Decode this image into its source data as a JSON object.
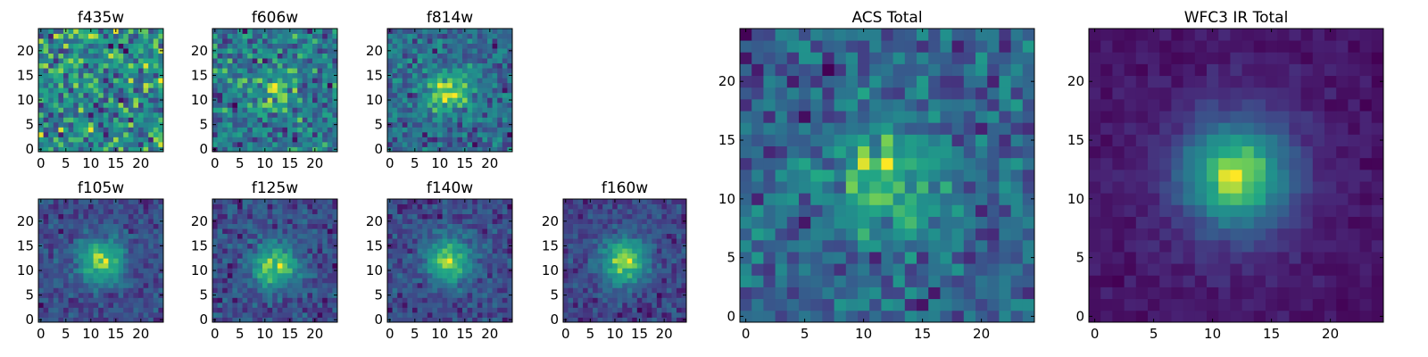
{
  "chart_data": [
    {
      "type": "heatmap",
      "title": "f435w",
      "xticks": [
        0,
        5,
        10,
        15,
        20
      ],
      "yticks": [
        0,
        5,
        10,
        15,
        20
      ],
      "xlim": [
        0,
        24
      ],
      "ylim": [
        0,
        24
      ],
      "grid_size": 25,
      "colormap": "viridis",
      "peak_center": null,
      "peak_strength": 0.0,
      "noise": 1.0,
      "seed": 11
    },
    {
      "type": "heatmap",
      "title": "f606w",
      "xticks": [
        0,
        5,
        10,
        15,
        20
      ],
      "yticks": [
        0,
        5,
        10,
        15,
        20
      ],
      "xlim": [
        0,
        24
      ],
      "ylim": [
        0,
        24
      ],
      "grid_size": 25,
      "colormap": "viridis",
      "peak_center": [
        12,
        12
      ],
      "peak_strength": 0.2,
      "noise": 0.9,
      "seed": 23
    },
    {
      "type": "heatmap",
      "title": "f814w",
      "xticks": [
        0,
        5,
        10,
        15,
        20
      ],
      "yticks": [
        0,
        5,
        10,
        15,
        20
      ],
      "xlim": [
        0,
        24
      ],
      "ylim": [
        0,
        24
      ],
      "grid_size": 25,
      "colormap": "viridis",
      "peak_center": [
        12,
        12
      ],
      "peak_strength": 0.45,
      "noise": 0.8,
      "seed": 37
    },
    {
      "type": "heatmap",
      "title": "f105w",
      "xticks": [
        0,
        5,
        10,
        15,
        20
      ],
      "yticks": [
        0,
        5,
        10,
        15,
        20
      ],
      "xlim": [
        0,
        24
      ],
      "ylim": [
        0,
        24
      ],
      "grid_size": 25,
      "colormap": "viridis",
      "peak_center": [
        12,
        12
      ],
      "peak_strength": 0.7,
      "noise": 0.6,
      "seed": 41
    },
    {
      "type": "heatmap",
      "title": "f125w",
      "xticks": [
        0,
        5,
        10,
        15,
        20
      ],
      "yticks": [
        0,
        5,
        10,
        15,
        20
      ],
      "xlim": [
        0,
        24
      ],
      "ylim": [
        0,
        24
      ],
      "grid_size": 25,
      "colormap": "viridis",
      "peak_center": [
        12,
        11
      ],
      "peak_strength": 0.6,
      "noise": 0.6,
      "seed": 53
    },
    {
      "type": "heatmap",
      "title": "f140w",
      "xticks": [
        0,
        5,
        10,
        15,
        20
      ],
      "yticks": [
        0,
        5,
        10,
        15,
        20
      ],
      "xlim": [
        0,
        24
      ],
      "ylim": [
        0,
        24
      ],
      "grid_size": 25,
      "colormap": "viridis",
      "peak_center": [
        12,
        12
      ],
      "peak_strength": 0.7,
      "noise": 0.6,
      "seed": 67
    },
    {
      "type": "heatmap",
      "title": "f160w",
      "xticks": [
        0,
        5,
        10,
        15,
        20
      ],
      "yticks": [
        0,
        5,
        10,
        15,
        20
      ],
      "xlim": [
        0,
        24
      ],
      "ylim": [
        0,
        24
      ],
      "grid_size": 25,
      "colormap": "viridis",
      "peak_center": [
        12,
        12
      ],
      "peak_strength": 0.75,
      "noise": 0.55,
      "seed": 79
    },
    {
      "type": "heatmap",
      "title": "ACS Total",
      "xticks": [
        0,
        5,
        10,
        15,
        20
      ],
      "yticks": [
        0,
        5,
        10,
        15,
        20
      ],
      "xlim": [
        0,
        24
      ],
      "ylim": [
        0,
        24
      ],
      "grid_size": 25,
      "colormap": "viridis",
      "peak_center": [
        12,
        12
      ],
      "peak_strength": 0.35,
      "noise": 0.75,
      "seed": 83
    },
    {
      "type": "heatmap",
      "title": "WFC3 IR Total",
      "xticks": [
        0,
        5,
        10,
        15,
        20
      ],
      "yticks": [
        0,
        5,
        10,
        15,
        20
      ],
      "xlim": [
        0,
        24
      ],
      "ylim": [
        0,
        24
      ],
      "grid_size": 25,
      "colormap": "viridis",
      "peak_center": [
        12,
        12
      ],
      "peak_strength": 1.0,
      "noise": 0.3,
      "seed": 97
    }
  ]
}
